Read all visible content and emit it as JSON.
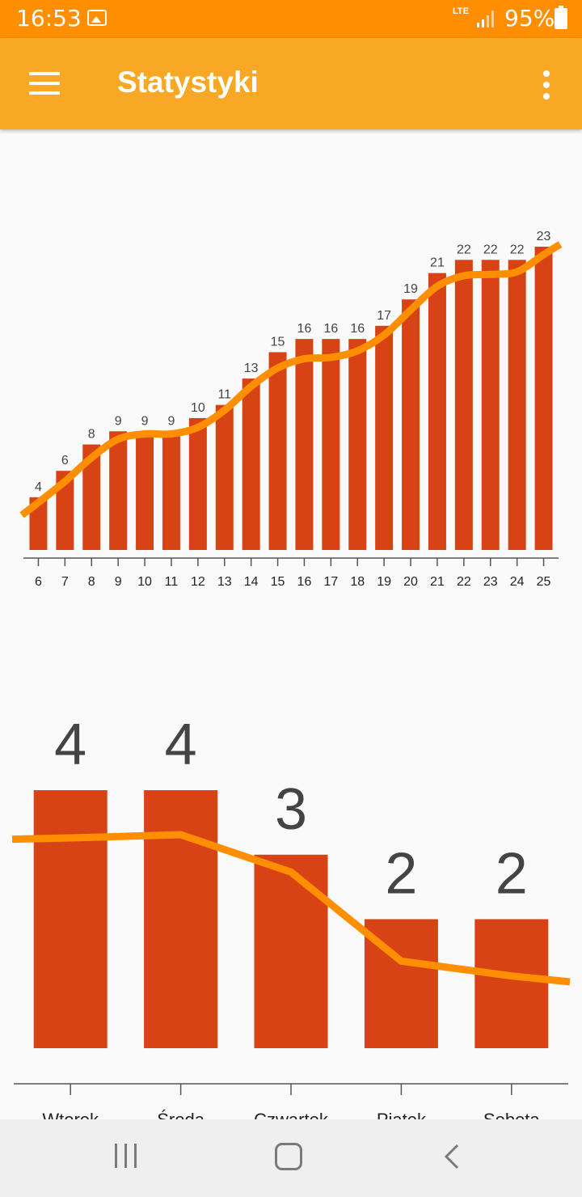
{
  "status_bar": {
    "time": "16:53",
    "network": "LTE",
    "battery": "95%"
  },
  "app_bar": {
    "title": "Statystyki"
  },
  "charts": [
    {
      "type": "bar",
      "categories": [
        "6",
        "7",
        "8",
        "9",
        "10",
        "11",
        "12",
        "13",
        "14",
        "15",
        "16",
        "17",
        "18",
        "19",
        "20",
        "21",
        "22",
        "23",
        "24",
        "25"
      ],
      "values": [
        4,
        6,
        8,
        9,
        9,
        9,
        10,
        11,
        13,
        15,
        16,
        16,
        16,
        17,
        19,
        21,
        22,
        22,
        22,
        23
      ],
      "trend": [
        3.6,
        5.2,
        7.0,
        8.4,
        8.8,
        8.8,
        9.3,
        10.6,
        12.4,
        13.8,
        14.5,
        14.6,
        15.1,
        16.3,
        18.2,
        20.0,
        20.8,
        20.9,
        21.1,
        22.4
      ],
      "ylim": [
        0,
        23
      ],
      "colors": {
        "bar": "#d84315",
        "line": "#ff8f00",
        "label": "#444444",
        "axis": "#555555"
      }
    },
    {
      "type": "bar",
      "categories": [
        "Wtorek",
        "Środa",
        "Czwartek",
        "Piątek",
        "Sobota"
      ],
      "values": [
        4,
        4,
        3,
        2,
        2
      ],
      "trend": [
        3.26,
        3.31,
        2.73,
        1.35,
        1.12
      ],
      "ylim": [
        0,
        4
      ],
      "colors": {
        "bar": "#d84315",
        "line": "#ff8f00",
        "label": "#444444",
        "axis": "#555555"
      }
    }
  ]
}
